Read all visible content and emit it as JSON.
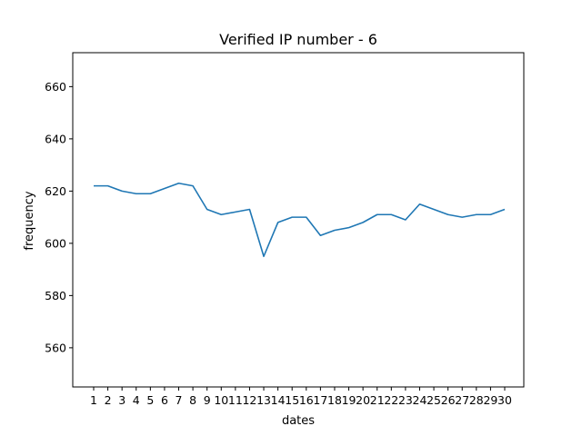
{
  "chart_data": {
    "type": "line",
    "title": "Verified IP number - 6",
    "xlabel": "dates",
    "ylabel": "frequency",
    "x": [
      "1",
      "2",
      "3",
      "4",
      "5",
      "6",
      "7",
      "8",
      "9",
      "10",
      "11",
      "12",
      "13",
      "14",
      "15",
      "16",
      "17",
      "18",
      "19",
      "20",
      "21",
      "22",
      "23",
      "24",
      "25",
      "26",
      "27",
      "28",
      "29",
      "30"
    ],
    "series": [
      {
        "color": "#1f77b4",
        "values": [
          622,
          622,
          620,
          619,
          619,
          621,
          623,
          622,
          613,
          611,
          612,
          613,
          595,
          608,
          610,
          610,
          603,
          605,
          606,
          608,
          611,
          611,
          609,
          615,
          613,
          611,
          610,
          611,
          611,
          613
        ]
      }
    ],
    "ylim": [
      545,
      673
    ],
    "yticks": [
      560,
      580,
      600,
      620,
      640,
      660
    ],
    "grid": false,
    "legend": false
  }
}
